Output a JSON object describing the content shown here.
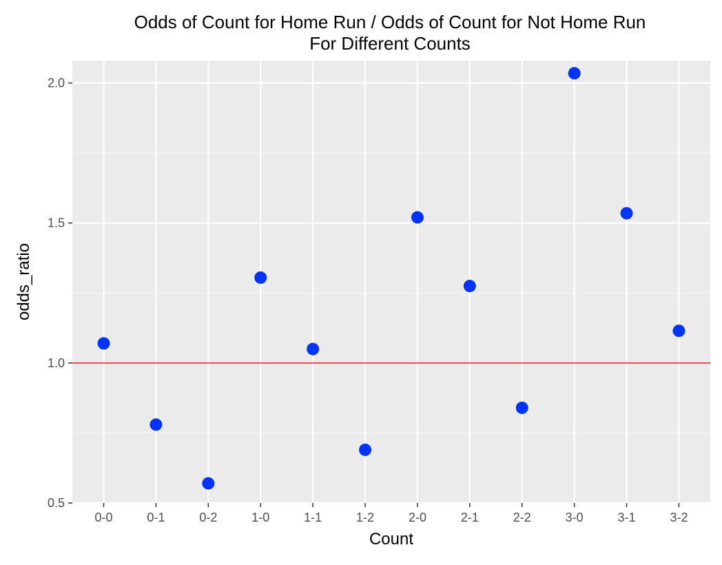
{
  "chart_data": {
    "type": "scatter",
    "title": "Odds of Count for Home Run / Odds of Count for Not Home Run",
    "subtitle": "For Different Counts",
    "xlabel": "Count",
    "ylabel": "odds_ratio",
    "categories": [
      "0-0",
      "0-1",
      "0-2",
      "1-0",
      "1-1",
      "1-2",
      "2-0",
      "2-1",
      "2-2",
      "3-0",
      "3-1",
      "3-2"
    ],
    "values": [
      1.07,
      0.78,
      0.57,
      1.305,
      1.05,
      0.69,
      1.52,
      1.275,
      0.84,
      2.035,
      1.535,
      1.115
    ],
    "ylim": [
      0.5,
      2.08
    ],
    "y_ticks": [
      0.5,
      1.0,
      1.5,
      2.0
    ],
    "y_tick_labels": [
      "0.5",
      "1.0",
      "1.5",
      "2.0"
    ],
    "reference_line": {
      "y": 1.0,
      "color": "#f8463c"
    },
    "grid": true,
    "colors": {
      "panel_background": "#ebebeb",
      "grid_major": "#ffffff",
      "grid_minor": "#f5f5f5",
      "point": "#0033ff",
      "tick_label": "#4d4d4d"
    }
  }
}
